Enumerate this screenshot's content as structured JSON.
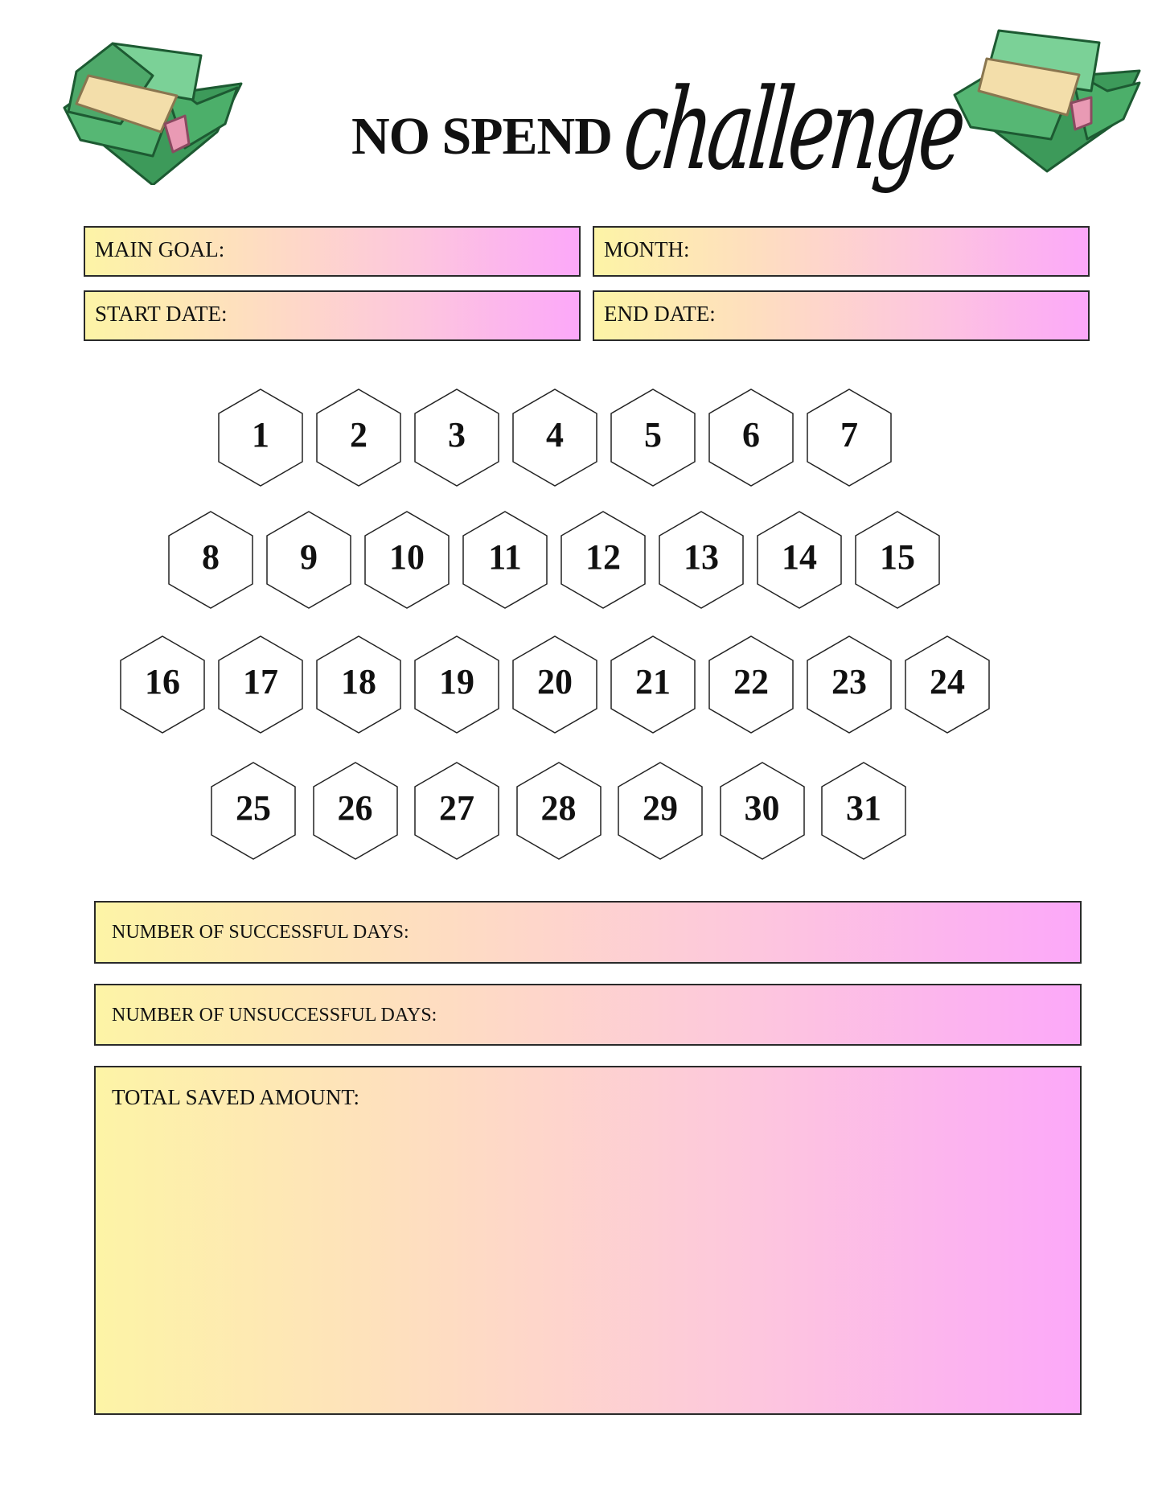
{
  "header": {
    "title_bold": "NO SPEND",
    "title_script": "challenge",
    "left_image": "money-stack-icon",
    "right_image": "money-stack-icon"
  },
  "fields": {
    "main_goal": "MAIN GOAL:",
    "month": "MONTH:",
    "start_date": "START DATE:",
    "end_date": "END DATE:"
  },
  "days": {
    "rows": [
      [
        "1",
        "2",
        "3",
        "4",
        "5",
        "6",
        "7"
      ],
      [
        "8",
        "9",
        "10",
        "11",
        "12",
        "13",
        "14",
        "15"
      ],
      [
        "16",
        "17",
        "18",
        "19",
        "20",
        "21",
        "22",
        "23",
        "24"
      ],
      [
        "25",
        "26",
        "27",
        "28",
        "29",
        "30",
        "31"
      ]
    ]
  },
  "summary": {
    "successful": "NUMBER OF SUCCESSFUL DAYS:",
    "unsuccessful": "NUMBER OF UNSUCCESSFUL DAYS:",
    "total_saved": "TOTAL SAVED AMOUNT:"
  },
  "colors": {
    "gradient_start": "#fdf4a6",
    "gradient_end": "#fca8f9",
    "money_green": "#3fa35f",
    "border": "#2a2a2a"
  }
}
